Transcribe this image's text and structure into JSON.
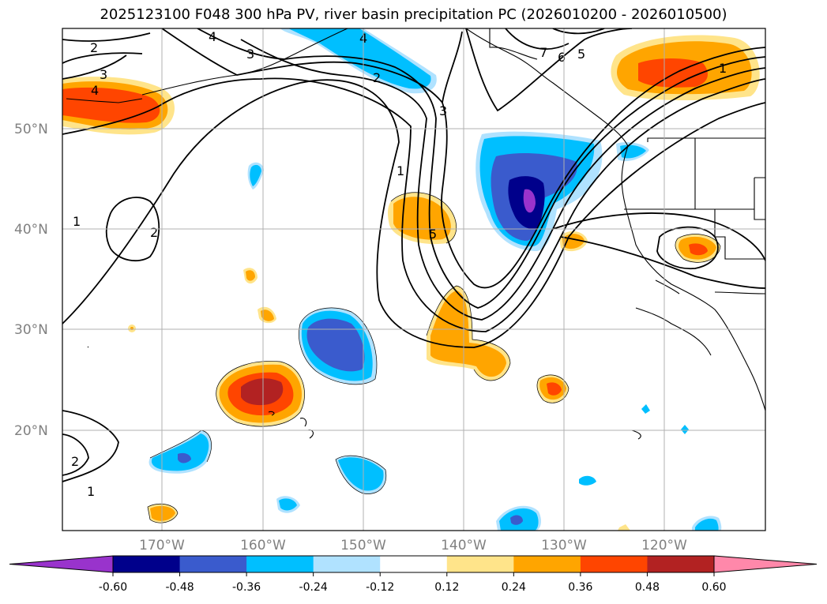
{
  "title": "2025123100 F048 300 hPa PV, river basin precipitation PC (2026010200 - 2026010500)",
  "map": {
    "projection": "cylindrical",
    "lon_range": [
      -180,
      -110
    ],
    "lat_range": [
      10,
      60
    ],
    "gridlines": true
  },
  "lat_labels": [
    "20°N",
    "30°N",
    "40°N",
    "50°N"
  ],
  "lon_labels": [
    "170°W",
    "160°W",
    "150°W",
    "140°W",
    "130°W",
    "120°W"
  ],
  "colorbar": {
    "ticks": [
      "-0.60",
      "-0.48",
      "-0.36",
      "-0.24",
      "-0.12",
      "0.12",
      "0.24",
      "0.36",
      "0.48",
      "0.60"
    ],
    "colors": [
      "#9933cc",
      "#00008b",
      "#3a5bcd",
      "#00bfff",
      "#b0e2ff",
      "#ffffff",
      "#ffe48a",
      "#ffa500",
      "#ff4500",
      "#b22222",
      "#ff88aa"
    ]
  },
  "pv_contour_labels": [
    "1",
    "2",
    "3",
    "4",
    "5",
    "6",
    "7"
  ]
}
